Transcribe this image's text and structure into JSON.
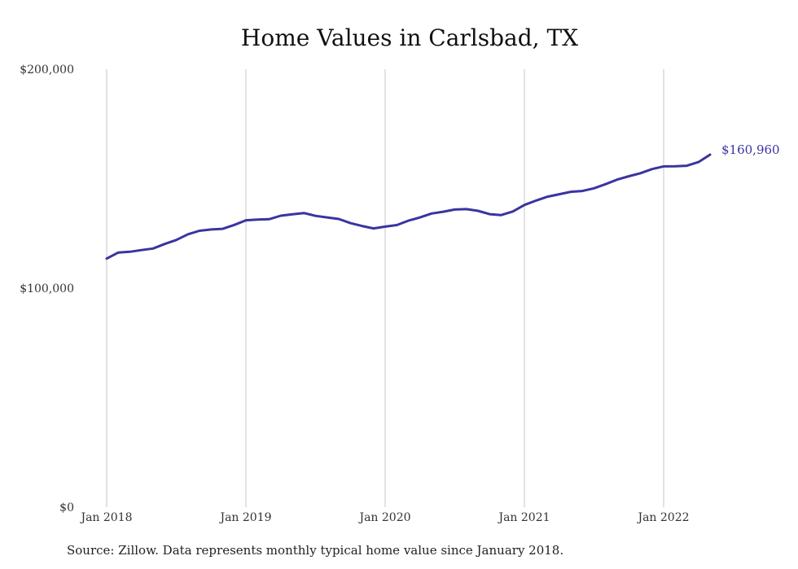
{
  "chart_data": {
    "type": "line",
    "title": "Home Values in Carlsbad, TX",
    "xlabel": "",
    "ylabel": "",
    "ylim": [
      0,
      200000
    ],
    "y_ticks": [
      {
        "value": 0,
        "label": "$0"
      },
      {
        "value": 100000,
        "label": "$100,000"
      },
      {
        "value": 200000,
        "label": "$200,000"
      }
    ],
    "x_ticks": [
      {
        "value": "2018-01",
        "label": "Jan 2018"
      },
      {
        "value": "2019-01",
        "label": "Jan 2019"
      },
      {
        "value": "2020-01",
        "label": "Jan 2020"
      },
      {
        "value": "2021-01",
        "label": "Jan 2021"
      },
      {
        "value": "2022-01",
        "label": "Jan 2022"
      }
    ],
    "grid": "vertical",
    "line_color": "#3a34a0",
    "end_label": "$160,960",
    "series": [
      {
        "x": [
          "2018-01",
          "2018-02",
          "2018-03",
          "2018-04",
          "2018-05",
          "2018-06",
          "2018-07",
          "2018-08",
          "2018-09",
          "2018-10",
          "2018-11",
          "2018-12",
          "2019-01",
          "2019-02",
          "2019-03",
          "2019-04",
          "2019-05",
          "2019-06",
          "2019-07",
          "2019-08",
          "2019-09",
          "2019-10",
          "2019-11",
          "2019-12",
          "2020-01",
          "2020-02",
          "2020-03",
          "2020-04",
          "2020-05",
          "2020-06",
          "2020-07",
          "2020-08",
          "2020-09",
          "2020-10",
          "2020-11",
          "2020-12",
          "2021-01",
          "2021-02",
          "2021-03",
          "2021-04",
          "2021-05",
          "2021-06",
          "2021-07",
          "2021-08",
          "2021-09",
          "2021-10",
          "2021-11",
          "2021-12",
          "2022-01",
          "2022-02",
          "2022-03",
          "2022-04",
          "2022-05"
        ],
        "values": [
          113500,
          116300,
          116600,
          117400,
          118100,
          120200,
          122000,
          124600,
          126200,
          126800,
          127100,
          128900,
          131000,
          131300,
          131500,
          133100,
          133700,
          134300,
          133000,
          132300,
          131600,
          129700,
          128400,
          127300,
          128100,
          128800,
          130800,
          132300,
          134100,
          134900,
          135900,
          136100,
          135300,
          133800,
          133400,
          135000,
          138000,
          140000,
          141800,
          142900,
          144000,
          144400,
          145600,
          147500,
          149600,
          151100,
          152500,
          154400,
          155600,
          155700,
          155900,
          157600,
          160960
        ]
      }
    ]
  },
  "source_note": "Source: Zillow. Data represents monthly typical home value since January 2018."
}
